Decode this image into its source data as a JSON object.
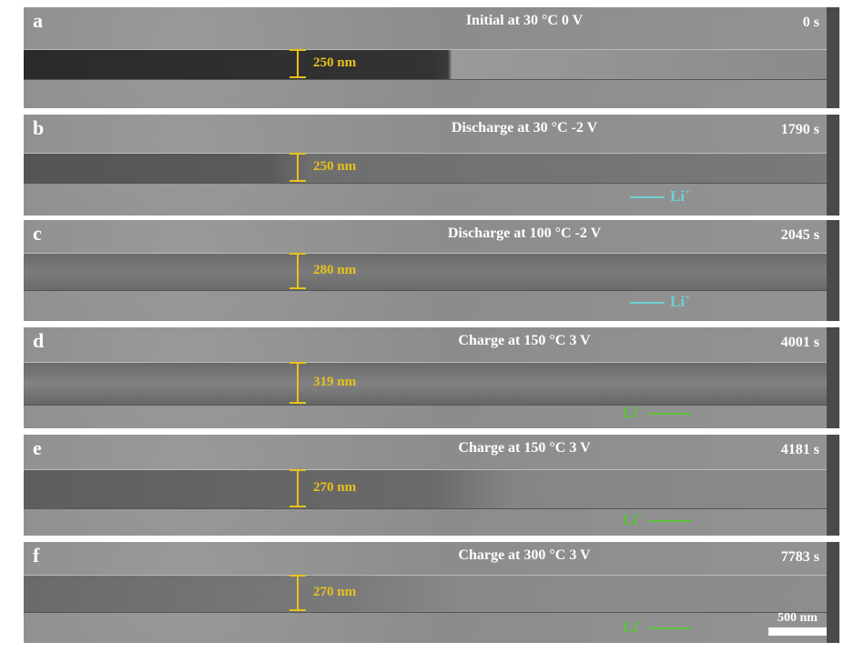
{
  "panels": [
    {
      "label": "a",
      "title": "Initial at 30 °C  0 V",
      "time": "0 s",
      "width": "250 nm",
      "li": null
    },
    {
      "label": "b",
      "title": "Discharge at 30 °C  -2 V",
      "time": "1790 s",
      "width": "250 nm",
      "li": "left"
    },
    {
      "label": "c",
      "title": "Discharge at 100 °C  -2 V",
      "time": "2045 s",
      "width": "280 nm",
      "li": "left"
    },
    {
      "label": "d",
      "title": "Charge at 150 °C  3 V",
      "time": "4001 s",
      "width": "319 nm",
      "li": "right"
    },
    {
      "label": "e",
      "title": "Charge at 150 °C  3 V",
      "time": "4181 s",
      "width": "270 nm",
      "li": "right"
    },
    {
      "label": "f",
      "title": "Charge at 300 °C  3 V",
      "time": "7783 s",
      "width": "270 nm",
      "li": "right"
    }
  ],
  "ion_label": "Li",
  "ion_charge": "+",
  "scale_bar": "500 nm",
  "colors": {
    "measure": "#e8c21a",
    "li_discharge": "#6fd0d0",
    "li_charge": "#5cc23c"
  }
}
